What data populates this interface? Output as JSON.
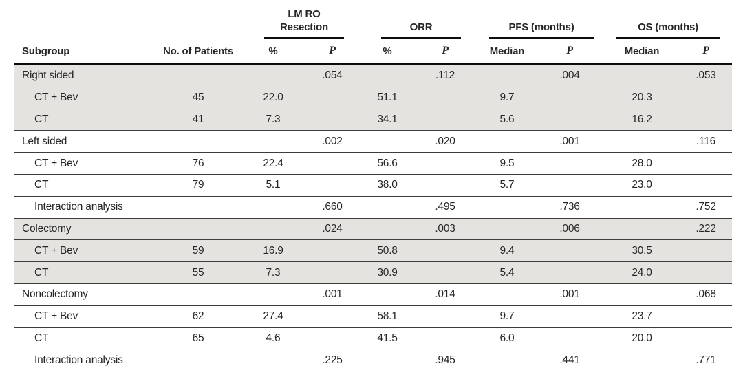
{
  "colors": {
    "row_shade": "#e4e3e0",
    "rule": "#3d3d3d",
    "thick_rule": "#0d0d0d",
    "text": "#262626"
  },
  "table": {
    "col_groups": [
      {
        "line1": "LM RO",
        "line2": "Resection"
      },
      {
        "line1": "",
        "line2": "ORR"
      },
      {
        "line1": "",
        "line2": "PFS (months)"
      },
      {
        "line1": "",
        "line2": "OS (months)"
      }
    ],
    "columns": [
      "Subgroup",
      "No. of Patients",
      "%",
      "P",
      "%",
      "P",
      "Median",
      "P",
      "Median",
      "P"
    ],
    "rows": [
      {
        "label": "Right sided",
        "indent": false,
        "shaded": true,
        "values": [
          "",
          "",
          ".054",
          "",
          ".112",
          "",
          ".004",
          "",
          ".053"
        ]
      },
      {
        "label": "CT + Bev",
        "indent": true,
        "shaded": true,
        "values": [
          "45",
          "22.0",
          "",
          "51.1",
          "",
          "9.7",
          "",
          "20.3",
          ""
        ]
      },
      {
        "label": "CT",
        "indent": true,
        "shaded": true,
        "values": [
          "41",
          "7.3",
          "",
          "34.1",
          "",
          "5.6",
          "",
          "16.2",
          ""
        ]
      },
      {
        "label": "Left sided",
        "indent": false,
        "shaded": false,
        "values": [
          "",
          "",
          ".002",
          "",
          ".020",
          "",
          ".001",
          "",
          ".116"
        ]
      },
      {
        "label": "CT + Bev",
        "indent": true,
        "shaded": false,
        "values": [
          "76",
          "22.4",
          "",
          "56.6",
          "",
          "9.5",
          "",
          "28.0",
          ""
        ]
      },
      {
        "label": "CT",
        "indent": true,
        "shaded": false,
        "values": [
          "79",
          "5.1",
          "",
          "38.0",
          "",
          "5.7",
          "",
          "23.0",
          ""
        ]
      },
      {
        "label": "Interaction analysis",
        "indent": true,
        "shaded": false,
        "values": [
          "",
          "",
          ".660",
          "",
          ".495",
          "",
          ".736",
          "",
          ".752"
        ]
      },
      {
        "label": "Colectomy",
        "indent": false,
        "shaded": true,
        "values": [
          "",
          "",
          ".024",
          "",
          ".003",
          "",
          ".006",
          "",
          ".222"
        ]
      },
      {
        "label": "CT + Bev",
        "indent": true,
        "shaded": true,
        "values": [
          "59",
          "16.9",
          "",
          "50.8",
          "",
          "9.4",
          "",
          "30.5",
          ""
        ]
      },
      {
        "label": "CT",
        "indent": true,
        "shaded": true,
        "values": [
          "55",
          "7.3",
          "",
          "30.9",
          "",
          "5.4",
          "",
          "24.0",
          ""
        ]
      },
      {
        "label": "Noncolectomy",
        "indent": false,
        "shaded": false,
        "values": [
          "",
          "",
          ".001",
          "",
          ".014",
          "",
          ".001",
          "",
          ".068"
        ]
      },
      {
        "label": "CT + Bev",
        "indent": true,
        "shaded": false,
        "values": [
          "62",
          "27.4",
          "",
          "58.1",
          "",
          "9.7",
          "",
          "23.7",
          ""
        ]
      },
      {
        "label": "CT",
        "indent": true,
        "shaded": false,
        "values": [
          "65",
          "4.6",
          "",
          "41.5",
          "",
          "6.0",
          "",
          "20.0",
          ""
        ]
      },
      {
        "label": "Interaction analysis",
        "indent": true,
        "shaded": false,
        "values": [
          "",
          "",
          ".225",
          "",
          ".945",
          "",
          ".441",
          "",
          ".771"
        ]
      }
    ]
  }
}
